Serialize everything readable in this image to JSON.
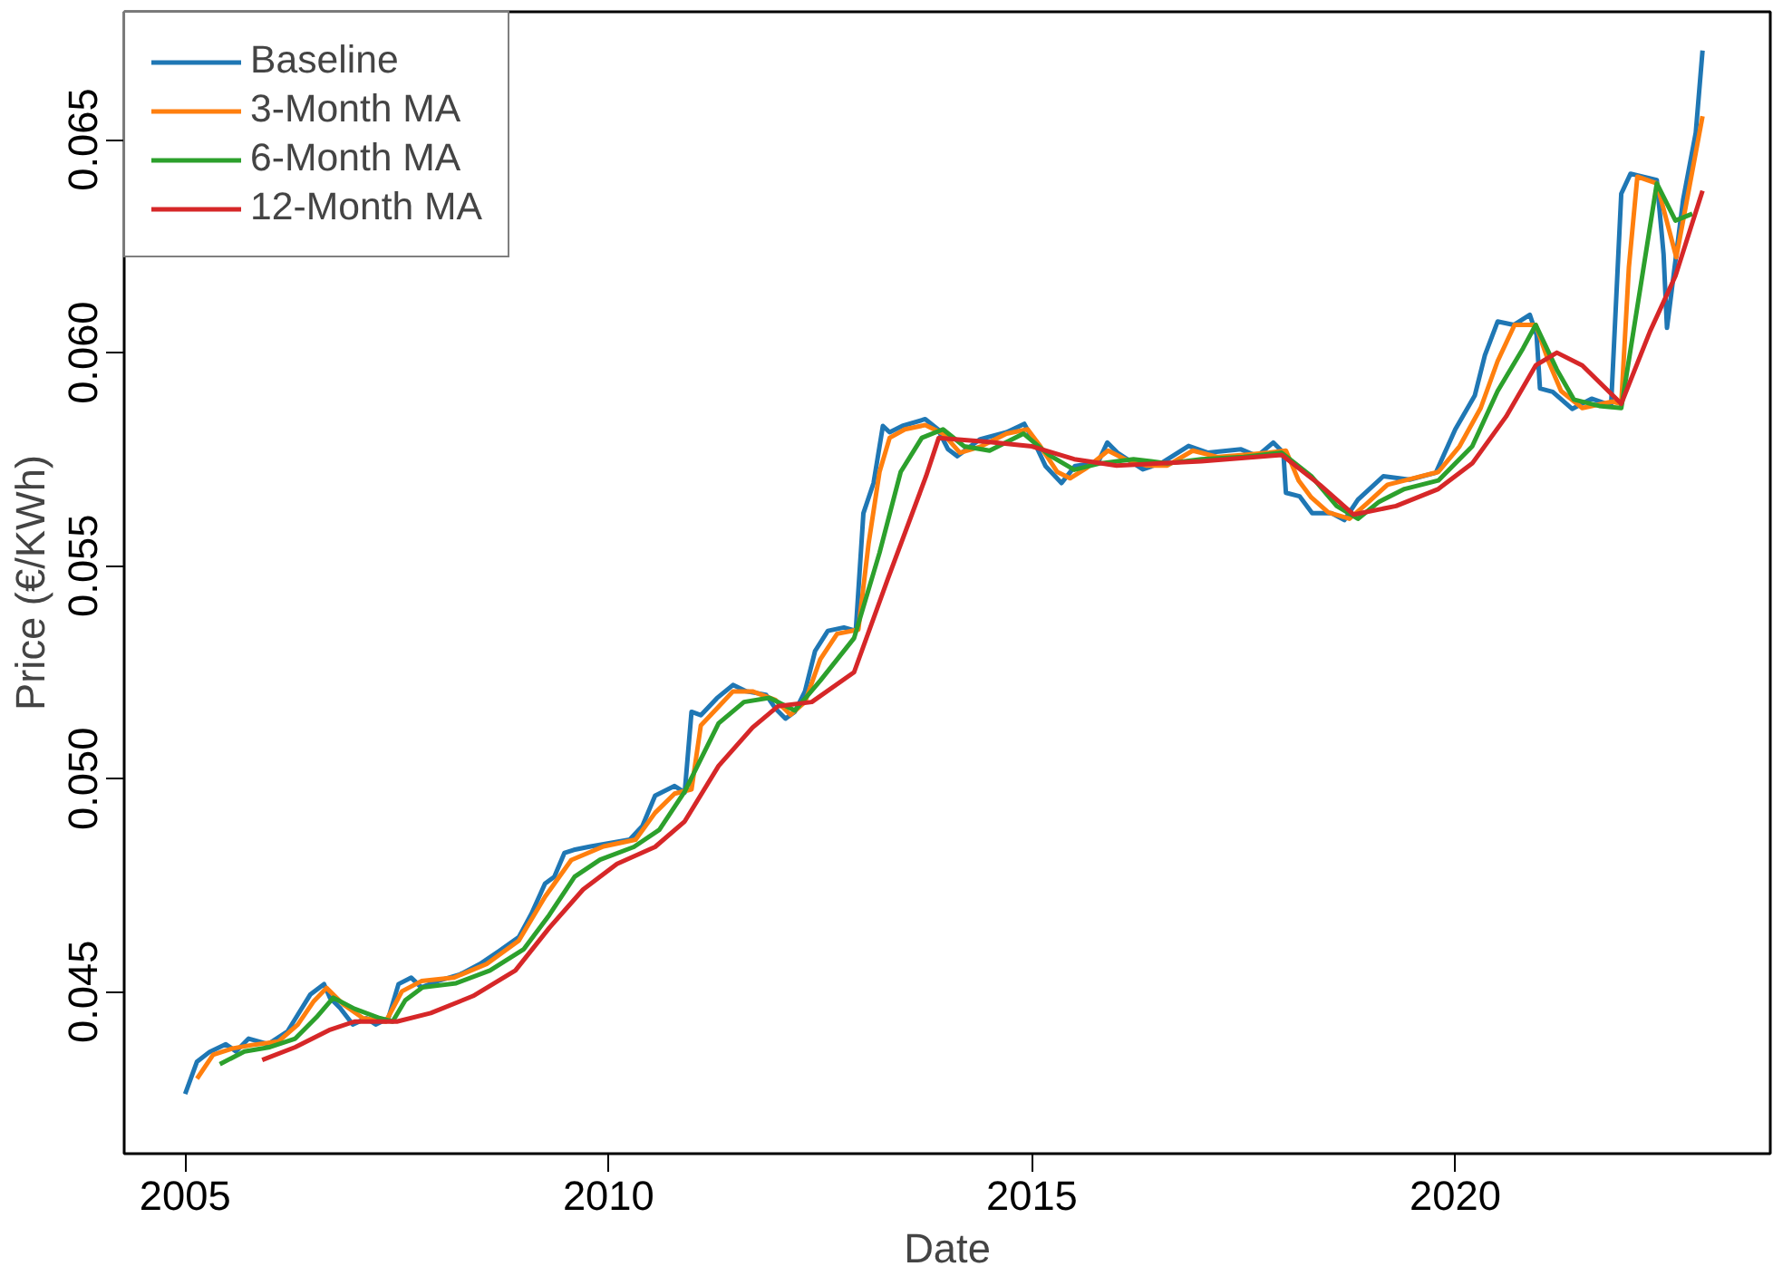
{
  "chart_data": {
    "type": "line",
    "xlabel": "Date",
    "ylabel": "Price (€/KWh)",
    "xlim": [
      2004.28,
      2023.72
    ],
    "ylim": [
      0.0412,
      0.068
    ],
    "xticks": [
      2005,
      2010,
      2015,
      2020
    ],
    "yticks": [
      {
        "value": 0.045,
        "label": "0.045"
      },
      {
        "value": 0.05,
        "label": "0.050"
      },
      {
        "value": 0.055,
        "label": "0.055"
      },
      {
        "value": 0.06,
        "label": "0.060"
      },
      {
        "value": 0.065,
        "label": "0.065"
      }
    ],
    "grid": false,
    "legend": "top left",
    "line_style": "solid",
    "marker": "none",
    "series": [
      {
        "name": "Baseline",
        "color": "#1f77b4",
        "x": [
          2005.0,
          2005.14,
          2005.29,
          2005.48,
          2005.6,
          2005.75,
          2005.98,
          2006.21,
          2006.33,
          2006.48,
          2006.64,
          2006.71,
          2006.83,
          2006.98,
          2007.14,
          2007.25,
          2007.4,
          2007.52,
          2007.67,
          2007.79,
          2007.98,
          2008.25,
          2008.48,
          2008.71,
          2008.94,
          2009.09,
          2009.25,
          2009.36,
          2009.48,
          2009.59,
          2009.79,
          2010.02,
          2010.25,
          2010.4,
          2010.55,
          2010.78,
          2010.9,
          2010.98,
          2011.09,
          2011.28,
          2011.47,
          2011.63,
          2011.86,
          2011.97,
          2012.09,
          2012.2,
          2012.32,
          2012.44,
          2012.59,
          2012.78,
          2012.92,
          2013.01,
          2013.13,
          2013.24,
          2013.32,
          2013.47,
          2013.74,
          2013.89,
          2014.01,
          2014.12,
          2014.39,
          2014.7,
          2014.91,
          2015.05,
          2015.16,
          2015.35,
          2015.51,
          2015.78,
          2015.89,
          2016.01,
          2016.31,
          2016.54,
          2016.85,
          2017.08,
          2017.47,
          2017.66,
          2017.85,
          2017.97,
          2018.0,
          2018.16,
          2018.31,
          2018.54,
          2018.69,
          2018.85,
          2019.15,
          2019.46,
          2019.77,
          2020.0,
          2020.23,
          2020.35,
          2020.5,
          2020.69,
          2020.88,
          2020.96,
          2021.0,
          2021.15,
          2021.38,
          2021.61,
          2021.84,
          2021.96,
          2022.07,
          2022.38,
          2022.46,
          2022.5,
          2022.69,
          2022.84,
          2022.92
        ],
        "values": [
          0.0426,
          0.04336,
          0.04359,
          0.04377,
          0.0436,
          0.0439,
          0.04377,
          0.04407,
          0.04446,
          0.04494,
          0.04518,
          0.04486,
          0.04462,
          0.04423,
          0.04438,
          0.04423,
          0.04438,
          0.04518,
          0.04533,
          0.0451,
          0.04525,
          0.04541,
          0.04565,
          0.04596,
          0.04628,
          0.04683,
          0.04754,
          0.0477,
          0.04826,
          0.04833,
          0.04841,
          0.04849,
          0.04857,
          0.04889,
          0.0496,
          0.04983,
          0.04968,
          0.05157,
          0.05149,
          0.05189,
          0.0522,
          0.05205,
          0.05197,
          0.05165,
          0.05141,
          0.05157,
          0.05205,
          0.053,
          0.05347,
          0.05355,
          0.05347,
          0.05623,
          0.05694,
          0.05828,
          0.05813,
          0.05828,
          0.05844,
          0.0582,
          0.05773,
          0.05757,
          0.05797,
          0.05813,
          0.05833,
          0.05781,
          0.05734,
          0.05694,
          0.05734,
          0.05742,
          0.05789,
          0.05765,
          0.05726,
          0.05742,
          0.05781,
          0.05765,
          0.05773,
          0.05757,
          0.05789,
          0.05765,
          0.05671,
          0.05663,
          0.05623,
          0.05623,
          0.05607,
          0.05655,
          0.0571,
          0.05702,
          0.05718,
          0.0582,
          0.05899,
          0.05994,
          0.06073,
          0.06065,
          0.06089,
          0.06042,
          0.05916,
          0.05908,
          0.05868,
          0.05892,
          0.05876,
          0.06373,
          0.0642,
          0.06405,
          0.06231,
          0.06058,
          0.06358,
          0.06516,
          0.06709
        ]
      },
      {
        "name": "3-Month MA",
        "color": "#ff7f0e",
        "x": [
          2005.14,
          2005.33,
          2005.56,
          2005.79,
          2006.1,
          2006.33,
          2006.52,
          2006.67,
          2006.87,
          2007.1,
          2007.37,
          2007.56,
          2007.79,
          2008.17,
          2008.56,
          2008.94,
          2009.25,
          2009.56,
          2009.94,
          2010.32,
          2010.55,
          2010.78,
          2010.98,
          2011.09,
          2011.28,
          2011.47,
          2011.7,
          2011.97,
          2012.15,
          2012.32,
          2012.5,
          2012.7,
          2012.95,
          2013.07,
          2013.2,
          2013.32,
          2013.5,
          2013.74,
          2013.95,
          2014.15,
          2014.4,
          2014.7,
          2014.95,
          2015.1,
          2015.3,
          2015.45,
          2015.65,
          2015.9,
          2016.1,
          2016.35,
          2016.6,
          2016.9,
          2017.2,
          2017.5,
          2017.8,
          2018.0,
          2018.15,
          2018.3,
          2018.5,
          2018.75,
          2018.95,
          2019.2,
          2019.5,
          2019.8,
          2020.05,
          2020.3,
          2020.5,
          2020.7,
          2020.95,
          2021.1,
          2021.25,
          2021.5,
          2021.85,
          2021.96,
          2022.05,
          2022.15,
          2022.38,
          2022.61,
          2022.92
        ],
        "values": [
          0.04296,
          0.04352,
          0.04367,
          0.04375,
          0.04383,
          0.04423,
          0.04478,
          0.04509,
          0.0447,
          0.04438,
          0.0443,
          0.04501,
          0.04525,
          0.04533,
          0.04565,
          0.0462,
          0.04723,
          0.04809,
          0.04841,
          0.04857,
          0.0492,
          0.04965,
          0.04975,
          0.05125,
          0.05165,
          0.05205,
          0.05205,
          0.05185,
          0.0515,
          0.0518,
          0.0528,
          0.0534,
          0.0535,
          0.0555,
          0.0572,
          0.058,
          0.0582,
          0.0583,
          0.0581,
          0.05765,
          0.0578,
          0.0581,
          0.0582,
          0.0578,
          0.0572,
          0.05705,
          0.0573,
          0.0577,
          0.0575,
          0.05735,
          0.05735,
          0.0577,
          0.05755,
          0.0576,
          0.05765,
          0.0577,
          0.057,
          0.0566,
          0.05625,
          0.0561,
          0.05645,
          0.0569,
          0.05705,
          0.0572,
          0.0578,
          0.0587,
          0.0598,
          0.06065,
          0.06065,
          0.0598,
          0.0591,
          0.0587,
          0.05885,
          0.0588,
          0.062,
          0.06413,
          0.06397,
          0.06224,
          0.06555
        ]
      },
      {
        "name": "6-Month MA",
        "color": "#2ca02c",
        "x": [
          2005.41,
          2005.7,
          2006.0,
          2006.3,
          2006.55,
          2006.75,
          2007.0,
          2007.3,
          2007.45,
          2007.6,
          2007.8,
          2008.2,
          2008.6,
          2009.0,
          2009.3,
          2009.6,
          2009.9,
          2010.3,
          2010.6,
          2010.9,
          2011.3,
          2011.6,
          2011.9,
          2012.2,
          2012.5,
          2012.9,
          2013.2,
          2013.45,
          2013.7,
          2013.95,
          2014.2,
          2014.5,
          2014.9,
          2015.2,
          2015.5,
          2015.8,
          2016.2,
          2016.6,
          2017.0,
          2017.5,
          2017.95,
          2018.3,
          2018.6,
          2018.85,
          2019.1,
          2019.4,
          2019.8,
          2020.2,
          2020.5,
          2020.8,
          2020.95,
          2021.2,
          2021.4,
          2021.7,
          2021.96,
          2022.2,
          2022.38,
          2022.6,
          2022.8
        ],
        "values": [
          0.0433,
          0.0436,
          0.0437,
          0.0439,
          0.0444,
          0.04486,
          0.0446,
          0.04438,
          0.0443,
          0.0448,
          0.0451,
          0.0452,
          0.0455,
          0.046,
          0.0468,
          0.0477,
          0.0481,
          0.0484,
          0.0488,
          0.0497,
          0.0513,
          0.0518,
          0.0519,
          0.0516,
          0.0523,
          0.0533,
          0.0553,
          0.0572,
          0.058,
          0.0582,
          0.0578,
          0.0577,
          0.0581,
          0.0576,
          0.05725,
          0.0574,
          0.0575,
          0.0574,
          0.0575,
          0.05755,
          0.05765,
          0.0571,
          0.0564,
          0.0561,
          0.0565,
          0.0568,
          0.057,
          0.0578,
          0.0591,
          0.0601,
          0.06065,
          0.0596,
          0.0589,
          0.05875,
          0.0587,
          0.0617,
          0.06397,
          0.0631,
          0.06326
        ]
      },
      {
        "name": "12-Month MA",
        "color": "#d62728",
        "x": [
          2005.91,
          2006.3,
          2006.7,
          2007.0,
          2007.5,
          2007.9,
          2008.4,
          2008.9,
          2009.3,
          2009.7,
          2010.1,
          2010.55,
          2010.9,
          2011.3,
          2011.7,
          2012.0,
          2012.4,
          2012.9,
          2013.3,
          2013.75,
          2013.9,
          2014.5,
          2015.0,
          2015.5,
          2016.0,
          2017.0,
          2017.95,
          2018.4,
          2018.8,
          2019.3,
          2019.8,
          2020.2,
          2020.6,
          2020.95,
          2021.2,
          2021.5,
          2021.96,
          2022.3,
          2022.6,
          2022.92
        ],
        "values": [
          0.0434,
          0.0437,
          0.0441,
          0.0443,
          0.0443,
          0.0445,
          0.0449,
          0.0455,
          0.0465,
          0.0474,
          0.048,
          0.0484,
          0.049,
          0.0503,
          0.0512,
          0.0517,
          0.0518,
          0.0525,
          0.0547,
          0.0571,
          0.058,
          0.0579,
          0.0578,
          0.0575,
          0.05735,
          0.05745,
          0.0576,
          0.0569,
          0.0562,
          0.0564,
          0.0568,
          0.0574,
          0.0585,
          0.0597,
          0.06,
          0.0597,
          0.0588,
          0.0605,
          0.0618,
          0.0638
        ]
      }
    ]
  }
}
